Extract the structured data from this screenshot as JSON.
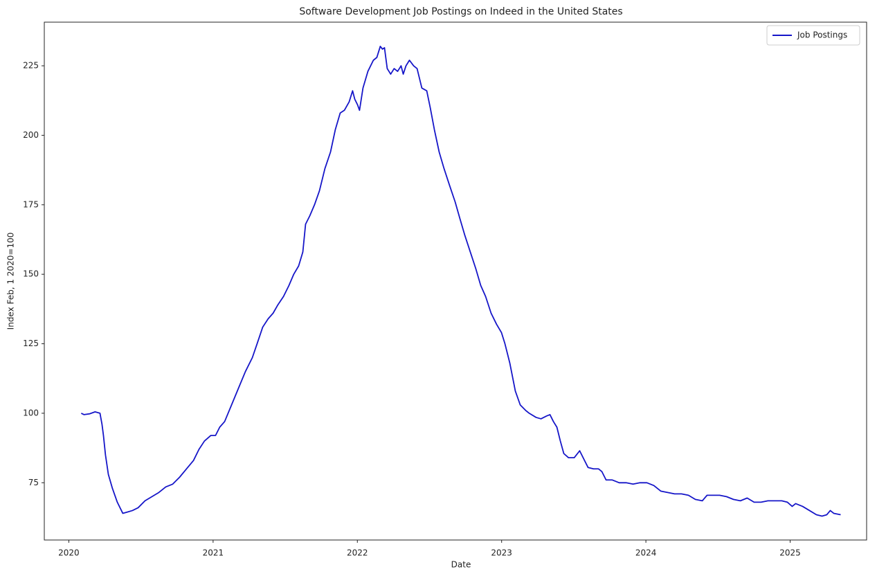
{
  "chart_data": {
    "type": "line",
    "title": "Software Development Job Postings on Indeed in the United States",
    "xlabel": "Date",
    "ylabel": "Index Feb, 1 2020=100",
    "x": [
      2020.086,
      2020.106,
      2020.144,
      2020.182,
      2020.216,
      2020.23,
      2020.24,
      2020.254,
      2020.274,
      2020.302,
      2020.336,
      2020.374,
      2020.408,
      2020.441,
      2020.48,
      2020.528,
      2020.576,
      2020.624,
      2020.672,
      2020.72,
      2020.768,
      2020.816,
      2020.864,
      2020.902,
      2020.94,
      2020.984,
      2021.017,
      2021.046,
      2021.08,
      2021.128,
      2021.176,
      2021.224,
      2021.272,
      2021.305,
      2021.344,
      2021.382,
      2021.416,
      2021.449,
      2021.488,
      2021.526,
      2021.559,
      2021.593,
      2021.622,
      2021.641,
      2021.67,
      2021.703,
      2021.737,
      2021.775,
      2021.814,
      2021.847,
      2021.881,
      2021.91,
      2021.943,
      2021.967,
      2021.982,
      2022.001,
      2022.015,
      2022.039,
      2022.073,
      2022.111,
      2022.135,
      2022.159,
      2022.174,
      2022.188,
      2022.207,
      2022.231,
      2022.255,
      2022.279,
      2022.303,
      2022.318,
      2022.337,
      2022.361,
      2022.39,
      2022.414,
      2022.447,
      2022.481,
      2022.505,
      2022.534,
      2022.567,
      2022.601,
      2022.639,
      2022.678,
      2022.711,
      2022.745,
      2022.783,
      2022.821,
      2022.855,
      2022.889,
      2022.927,
      2022.965,
      2022.999,
      2023.023,
      2023.057,
      2023.095,
      2023.129,
      2023.167,
      2023.191,
      2023.239,
      2023.273,
      2023.311,
      2023.335,
      2023.359,
      2023.383,
      2023.407,
      2023.431,
      2023.464,
      2023.503,
      2023.541,
      2023.565,
      2023.599,
      2023.637,
      2023.671,
      2023.695,
      2023.724,
      2023.767,
      2023.815,
      2023.863,
      2023.911,
      2023.959,
      2024.007,
      2024.055,
      2024.103,
      2024.151,
      2024.199,
      2024.247,
      2024.295,
      2024.343,
      2024.391,
      2024.424,
      2024.463,
      2024.511,
      2024.559,
      2024.607,
      2024.655,
      2024.702,
      2024.75,
      2024.798,
      2024.846,
      2024.894,
      2024.942,
      2024.981,
      2025.014,
      2025.038,
      2025.086,
      2025.134,
      2025.182,
      2025.221,
      2025.254,
      2025.278,
      2025.302,
      2025.35
    ],
    "series": [
      {
        "name": "Job Postings",
        "color": "#1515c8",
        "values": [
          100,
          99.5,
          99.8,
          100.5,
          100,
          96,
          92,
          85,
          78,
          73,
          68,
          64,
          64.5,
          65,
          66,
          68.5,
          70,
          71.5,
          73.5,
          74.5,
          77,
          80,
          83,
          87,
          90,
          92,
          92,
          95,
          97,
          103,
          109,
          115,
          120,
          125,
          131,
          134,
          136,
          139,
          142,
          146,
          150,
          153,
          158,
          168,
          171,
          175,
          180,
          188,
          194,
          202,
          208,
          209,
          212,
          216,
          213,
          211,
          209,
          217,
          223,
          227,
          228,
          232,
          231,
          231.5,
          224,
          222,
          224,
          223,
          225,
          222,
          225,
          227,
          225,
          224,
          217,
          216,
          210,
          202,
          194,
          188,
          182,
          176,
          170,
          164,
          158,
          152,
          146,
          142,
          136,
          132,
          129,
          125,
          118,
          108,
          103,
          101,
          100,
          98.5,
          98,
          99,
          99.5,
          97,
          95,
          90,
          85.5,
          84,
          84,
          86.5,
          84,
          80.5,
          80,
          80,
          79,
          76,
          76,
          75,
          75,
          74.5,
          75,
          75,
          74,
          72,
          71.5,
          71,
          71,
          70.5,
          69,
          68.5,
          70.5,
          70.5,
          70.5,
          70,
          69,
          68.5,
          69.5,
          68,
          68,
          68.5,
          68.5,
          68.5,
          68,
          66.5,
          67.5,
          66.5,
          65,
          63.5,
          63,
          63.5,
          65,
          64,
          63.5
        ]
      }
    ],
    "xlim": [
      2019.83,
      2025.53
    ],
    "xticks": [
      2020,
      2021,
      2022,
      2023,
      2024,
      2025
    ],
    "ylim": [
      54.4,
      240.7
    ],
    "yticks": [
      75,
      100,
      125,
      150,
      175,
      200,
      225
    ],
    "grid": false,
    "legend": "upper right"
  }
}
